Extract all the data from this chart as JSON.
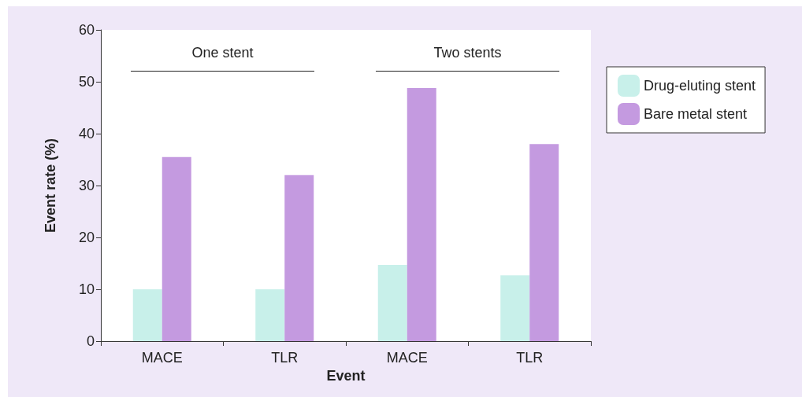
{
  "chart_data": {
    "type": "bar",
    "xlabel": "Event",
    "ylabel": "Event rate (%)",
    "categories": [
      "MACE",
      "TLR",
      "MACE",
      "TLR"
    ],
    "series": [
      {
        "name": "Drug-eluting stent",
        "color": "#c8f0ea",
        "values": [
          10,
          10,
          14.7,
          12.7
        ]
      },
      {
        "name": "Bare metal stent",
        "color": "#c49ae0",
        "values": [
          35.5,
          32,
          48.8,
          38
        ]
      }
    ],
    "ylim": [
      0,
      60
    ],
    "yticks": [
      0,
      10,
      20,
      30,
      40,
      50,
      60
    ],
    "grid": false,
    "legend": "right",
    "annotations": [
      "One stent",
      "Two stents"
    ]
  }
}
